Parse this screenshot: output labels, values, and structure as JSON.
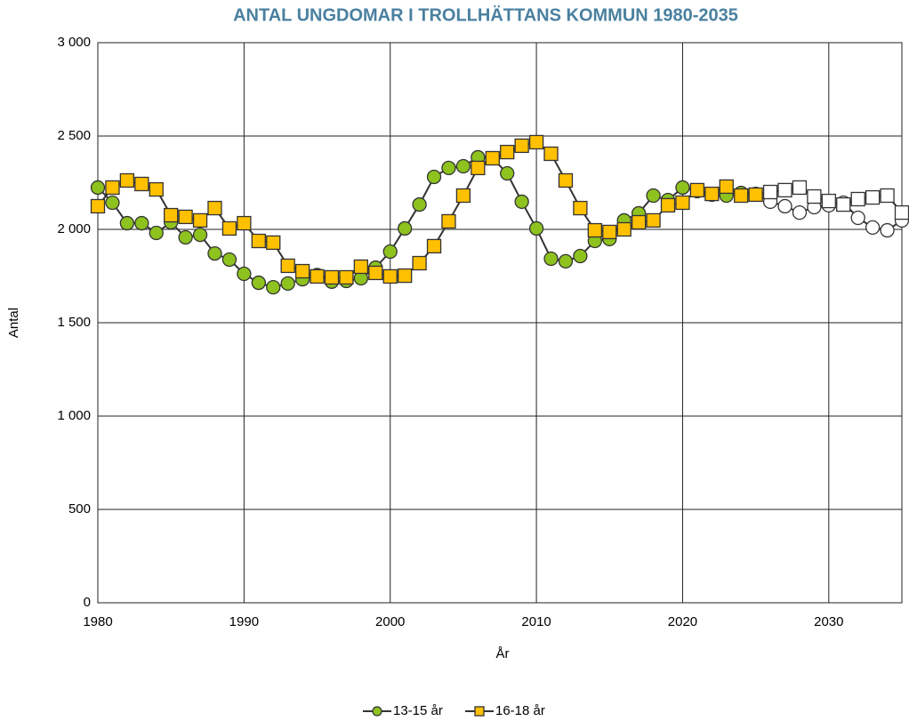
{
  "chart_data": {
    "type": "line",
    "title": "ANTAL UNGDOMAR I TROLLHÄTTANS KOMMUN 1980-2035",
    "x_label": "År",
    "y_label": "Antal",
    "x": [
      1980,
      1981,
      1982,
      1983,
      1984,
      1985,
      1986,
      1987,
      1988,
      1989,
      1990,
      1991,
      1992,
      1993,
      1994,
      1995,
      1996,
      1997,
      1998,
      1999,
      2000,
      2001,
      2002,
      2003,
      2004,
      2005,
      2006,
      2007,
      2008,
      2009,
      2010,
      2011,
      2012,
      2013,
      2014,
      2015,
      2016,
      2017,
      2018,
      2019,
      2020,
      2021,
      2022,
      2023,
      2024,
      2025,
      2026,
      2027,
      2028,
      2029,
      2030,
      2031,
      2032,
      2033,
      2034,
      2035
    ],
    "series": [
      {
        "name": "13-15 år",
        "color": "#8dc21f",
        "marker": "circle",
        "values": [
          2224,
          2143,
          2033,
          2033,
          1981,
          2038,
          1957,
          1971,
          1871,
          1838,
          1762,
          1714,
          1690,
          1710,
          1733,
          1755,
          1720,
          1724,
          1738,
          1795,
          1881,
          2005,
          2133,
          2281,
          2329,
          2338,
          2386,
          2381,
          2300,
          2148,
          2005,
          1843,
          1829,
          1857,
          1938,
          1948,
          2048,
          2086,
          2181,
          2157,
          2224,
          2205,
          2186,
          2181,
          2195,
          2190,
          2148,
          2124,
          2090,
          2119,
          2129,
          2143,
          2062,
          2010,
          1995,
          2048
        ]
      },
      {
        "name": "16-18 år",
        "color": "#ffc000",
        "marker": "square",
        "values": [
          2124,
          2224,
          2262,
          2243,
          2214,
          2076,
          2067,
          2048,
          2114,
          2005,
          2033,
          1938,
          1929,
          1805,
          1776,
          1748,
          1743,
          1743,
          1800,
          1767,
          1748,
          1752,
          1819,
          1910,
          2043,
          2181,
          2329,
          2381,
          2414,
          2448,
          2467,
          2405,
          2262,
          2114,
          1995,
          1986,
          2000,
          2038,
          2048,
          2129,
          2143,
          2210,
          2190,
          2229,
          2181,
          2186,
          2200,
          2210,
          2224,
          2176,
          2152,
          2133,
          2162,
          2171,
          2181,
          2090
        ]
      }
    ],
    "projection_from": 2026,
    "projection_fill": "#ffffff",
    "line_color": "#333333",
    "xlim": [
      1980,
      2035
    ],
    "xticks": [
      1980,
      1990,
      2000,
      2010,
      2020,
      2030
    ],
    "ylim": [
      0,
      3000
    ],
    "yticks": [
      0,
      500,
      {
        "value": 1000,
        "label": "1 000"
      },
      {
        "value": 1500,
        "label": "1 500"
      },
      {
        "value": 2000,
        "label": "2 000"
      },
      {
        "value": 2500,
        "label": "2 500"
      },
      {
        "value": 3000,
        "label": "3 000"
      }
    ],
    "grid": true,
    "legend": "bottom"
  }
}
